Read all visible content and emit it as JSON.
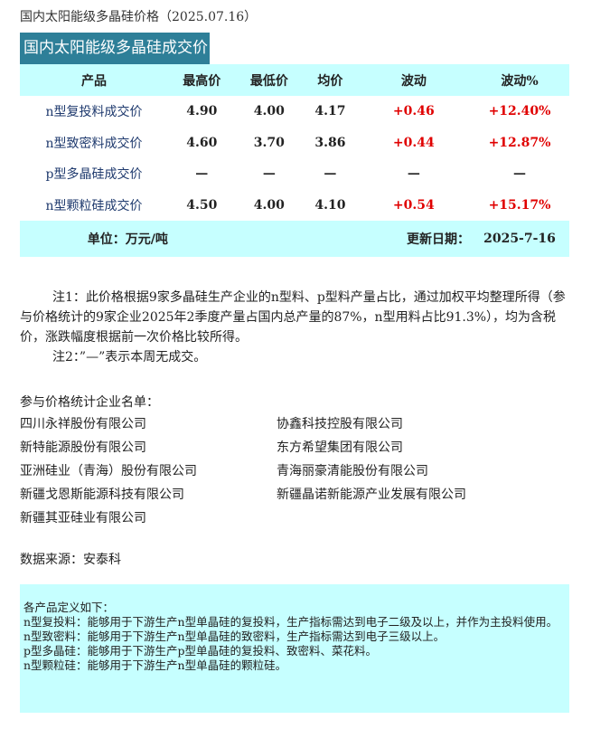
{
  "title": "国内太阳能级多晶硅价格（2025.07.16）",
  "section_title": "国内太阳能级多晶硅成交价",
  "table": {
    "headers": [
      "产品",
      "最高价",
      "最低价",
      "均价",
      "波动",
      "波动%"
    ],
    "rows": [
      [
        "n型复投料成交价",
        "4.90",
        "4.00",
        "4.17",
        "+0.46",
        "+12.40%"
      ],
      [
        "n型致密料成交价",
        "4.60",
        "3.70",
        "3.86",
        "+0.44",
        "+12.87%"
      ],
      [
        "p型多晶硅成交价",
        "—",
        "—",
        "—",
        "—",
        "—"
      ],
      [
        "n型颗粒硅成交价",
        "4.50",
        "4.00",
        "4.10",
        "+0.54",
        "+15.17%"
      ]
    ],
    "unit": "单位：万元/吨",
    "update_label": "更新日期：",
    "update_date": "2025-7-16"
  },
  "notes": [
    "注1：此价格根据9家多晶硅生产企业的n型料、p型料产量占比，通过加权平均整理所得（参与价格统计的9家企业2025年2季度产量占国内总产量的87%，n型用料占比91.3%），均为含税价，涨跌幅度根据前一次价格比较所得。",
    "注2：”—”表示本周无成交。"
  ],
  "companies_title": "参与价格统计企业名单：",
  "companies": [
    "四川永祥股份有限公司",
    "协鑫科技控股有限公司",
    "新特能源股份有限公司",
    "东方希望集团有限公司",
    "亚洲硅业（青海）股份有限公司",
    "青海丽豪清能股份有限公司",
    "新疆戈恩斯能源科技有限公司",
    "新疆晶诺新能源产业发展有限公司",
    "新疆其亚硅业有限公司"
  ],
  "source": "数据来源：安泰科",
  "definitions": [
    "各产品定义如下：",
    "n型复投料：能够用于下游生产n型单晶硅的复投料，生产指标需达到电子二级及以上，并作为主投料使用。",
    "n型致密料：能够用于下游生产n型单晶硅的致密料，生产指标需达到电子三级以上。",
    "p型多晶硅：能够用于下游生产p型单晶硅的复投料、致密料、菜花料。",
    "n型颗粒硅：能够用于下游生产n型单晶硅的颗粒硅。"
  ],
  "colors": {
    "header_box": "#2e7f98",
    "table_band": "#c6ffff",
    "rise": "#e00000"
  }
}
